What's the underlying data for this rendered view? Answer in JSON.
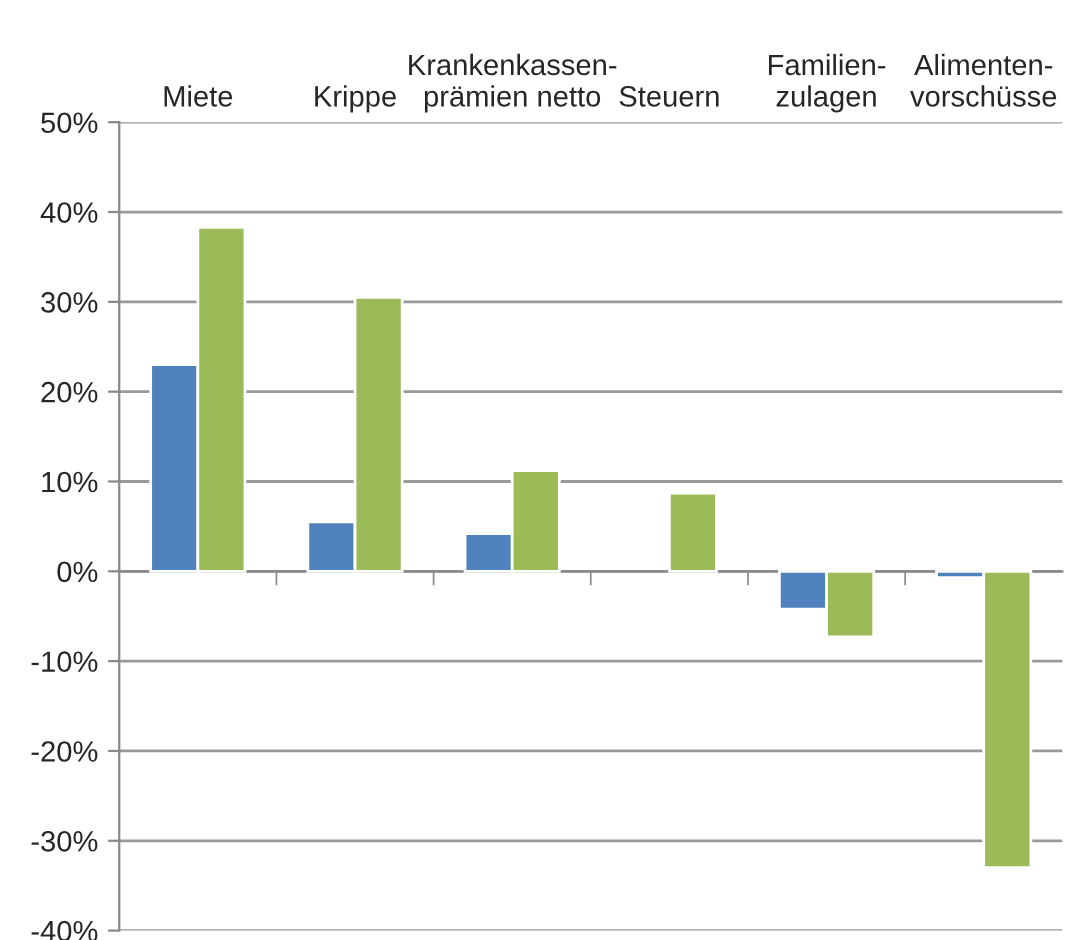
{
  "chart_data": {
    "type": "bar",
    "categories": [
      "Miete",
      "Krippe",
      "Krankenkassen-\nprämien netto",
      "Steuern",
      "Familien-\nzulagen",
      "Alimenten-\nvorschüsse"
    ],
    "series": [
      {
        "color": "#4f81bd",
        "values": [
          23,
          5.5,
          4.2,
          null,
          -4.2,
          -0.7
        ]
      },
      {
        "color": "#9bbb59",
        "values": [
          38.3,
          30.5,
          11.2,
          8.7,
          -7.3,
          -33
        ]
      }
    ],
    "ylim": [
      -40,
      50
    ],
    "yticks": [
      {
        "value": -40,
        "label": "-40%"
      },
      {
        "value": -30,
        "label": "-30%"
      },
      {
        "value": -20,
        "label": "-20%"
      },
      {
        "value": -10,
        "label": "-10%"
      },
      {
        "value": 0,
        "label": "0%"
      },
      {
        "value": 10,
        "label": "10%"
      },
      {
        "value": 20,
        "label": "20%"
      },
      {
        "value": 30,
        "label": "30%"
      },
      {
        "value": 40,
        "label": "40%"
      },
      {
        "value": 50,
        "label": "50%"
      }
    ],
    "grid": "y",
    "legend": false
  }
}
